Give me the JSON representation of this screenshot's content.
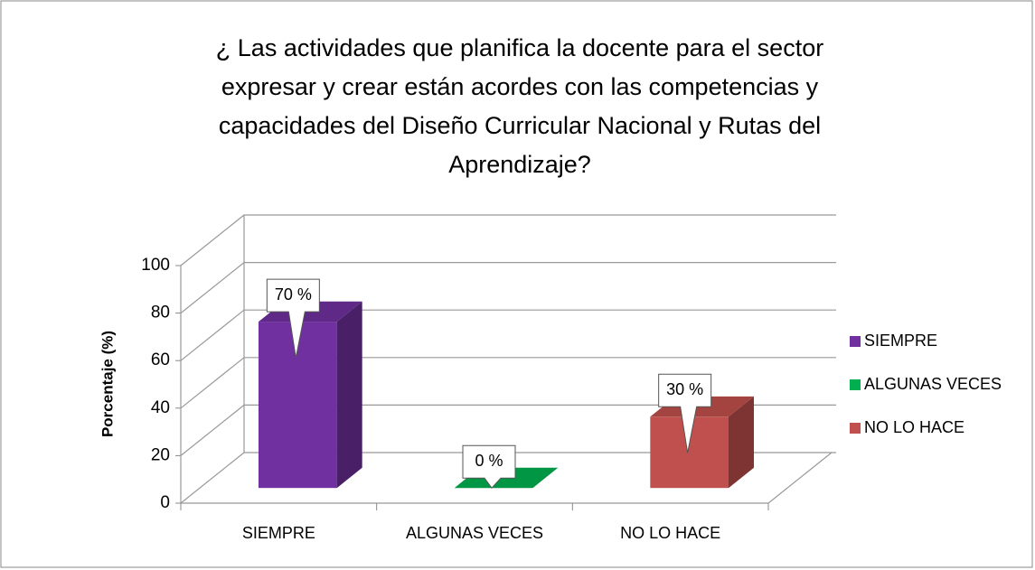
{
  "chart_data": {
    "type": "bar3d",
    "title": [
      "¿ Las actividades que planifica la docente para el sector",
      "expresar y crear están acordes con las competencias y",
      "capacidades del Diseño Curricular Nacional y Rutas del",
      "Aprendizaje?"
    ],
    "ylabel": "Porcentaje (%)",
    "categories": [
      "SIEMPRE",
      "ALGUNAS VECES",
      "NO LO HACE"
    ],
    "values": [
      70,
      0,
      30
    ],
    "value_labels": [
      "70 %",
      "0 %",
      "30 %"
    ],
    "colors": [
      "#7030a0",
      "#00b050",
      "#c0504d"
    ],
    "ylim": [
      0,
      100
    ],
    "yticks": [
      0,
      20,
      40,
      60,
      80,
      100
    ],
    "grid": true,
    "legend": "right"
  }
}
